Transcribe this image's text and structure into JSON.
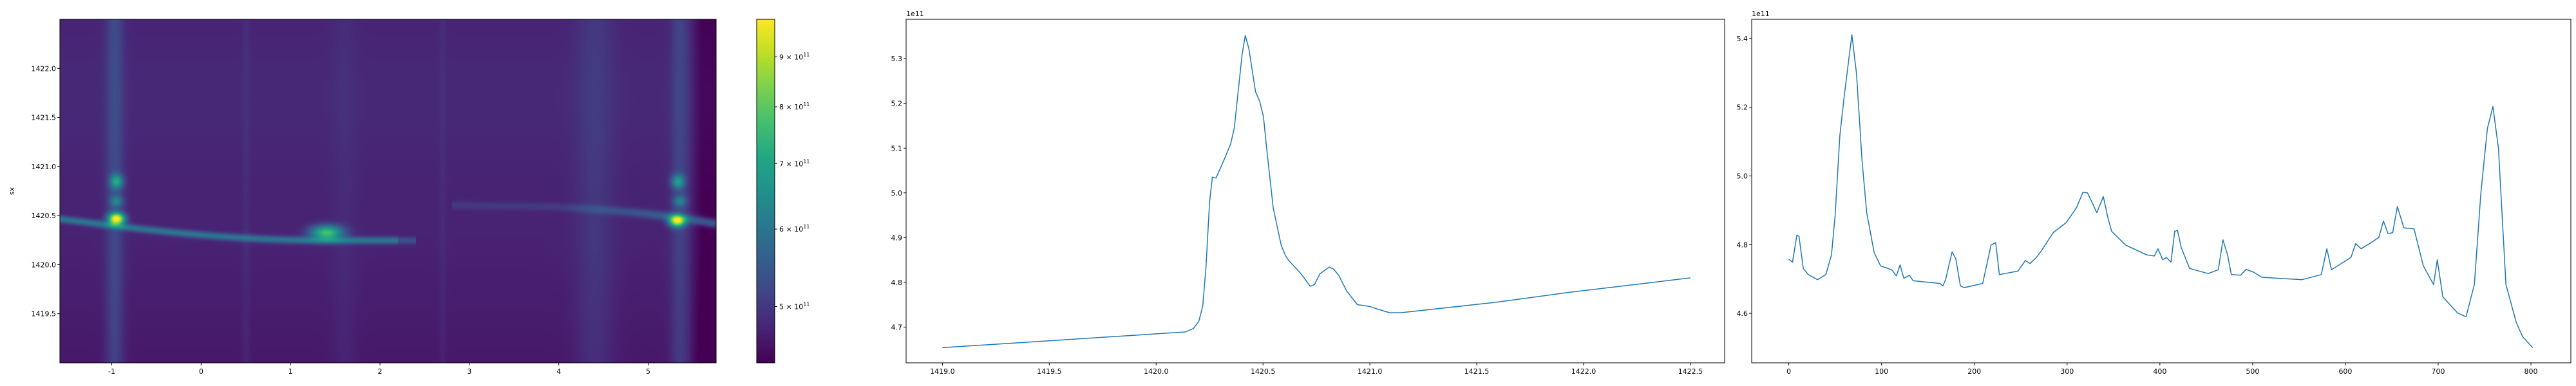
{
  "chart_data": [
    {
      "type": "heatmap",
      "ylabel": "sx",
      "xlabel": "",
      "xlim": [
        -1.58,
        5.76
      ],
      "ylim": [
        1419.0,
        1422.5
      ],
      "xticks": [
        "-1",
        "0",
        "1",
        "2",
        "3",
        "4",
        "5"
      ],
      "yticks": [
        "1419.5",
        "1420.0",
        "1420.5",
        "1421.0",
        "1421.5",
        "1422.0"
      ],
      "colormap": "viridis",
      "colorbar": {
        "scale": "log",
        "range": [
          438000000000.0,
          983000000000.0
        ],
        "ticks": [
          {
            "value": 500000000000.0,
            "mantissa": "5",
            "label": "5 × 10",
            "exp": "11"
          },
          {
            "value": 600000000000.0,
            "mantissa": "6",
            "label": "6 × 10",
            "exp": "11"
          },
          {
            "value": 700000000000.0,
            "mantissa": "7",
            "label": "7 × 10",
            "exp": "11"
          },
          {
            "value": 800000000000.0,
            "mantissa": "8",
            "label": "8 × 10",
            "exp": "11"
          },
          {
            "value": 900000000000.0,
            "mantissa": "9",
            "label": "9 × 10",
            "exp": "11"
          }
        ]
      }
    },
    {
      "type": "line",
      "xlim": [
        1418.83,
        1422.66
      ],
      "ylim": [
        4.62,
        5.388
      ],
      "offset_text": "1e11",
      "xticks": [
        "1419.0",
        "1419.5",
        "1420.0",
        "1420.5",
        "1421.0",
        "1421.5",
        "1422.0",
        "1422.5"
      ],
      "yticks": [
        "4.7",
        "4.8",
        "4.9",
        "5.0",
        "5.1",
        "5.2",
        "5.3"
      ],
      "color": "#1f77b4",
      "x": [
        1419.0,
        1420.137,
        1420.175,
        1420.2,
        1420.218,
        1420.233,
        1420.25,
        1420.263,
        1420.28,
        1420.318,
        1420.349,
        1420.366,
        1420.402,
        1420.417,
        1420.434,
        1420.465,
        1420.485,
        1420.502,
        1420.52,
        1420.548,
        1420.585,
        1420.605,
        1420.62,
        1420.678,
        1420.721,
        1420.741,
        1420.766,
        1420.809,
        1420.829,
        1420.854,
        1420.892,
        1420.942,
        1421.0,
        1421.037,
        1421.093,
        1421.144,
        1421.584,
        1421.924,
        1422.5
      ],
      "y": [
        4.654,
        4.689,
        4.697,
        4.713,
        4.747,
        4.833,
        4.979,
        5.035,
        5.033,
        5.074,
        5.11,
        5.146,
        5.309,
        5.352,
        5.322,
        5.226,
        5.204,
        5.17,
        5.087,
        4.966,
        4.883,
        4.86,
        4.849,
        4.819,
        4.791,
        4.795,
        4.819,
        4.834,
        4.83,
        4.816,
        4.78,
        4.75,
        4.746,
        4.74,
        4.732,
        4.732,
        4.755,
        4.777,
        4.81
      ]
    },
    {
      "type": "line",
      "xlim": [
        -40,
        843
      ],
      "ylim": [
        4.456,
        5.456
      ],
      "offset_text": "1e11",
      "xticks": [
        "0",
        "100",
        "200",
        "300",
        "400",
        "500",
        "600",
        "700",
        "800"
      ],
      "yticks": [
        "4.6",
        "4.8",
        "5.0",
        "5.2",
        "5.4"
      ],
      "color": "#1f77b4",
      "x": [
        0,
        4,
        8.7,
        11,
        15.6,
        21,
        31,
        40,
        46,
        50,
        55,
        60,
        68,
        73,
        79,
        84,
        92,
        99,
        111,
        116,
        120,
        124,
        130,
        134,
        163,
        166,
        169,
        176,
        180,
        185,
        189,
        209,
        218,
        223,
        227,
        247,
        255,
        260,
        267,
        273,
        285,
        299,
        310,
        317,
        322,
        332,
        339,
        344,
        348,
        363,
        386,
        394,
        398,
        403,
        407,
        412,
        416,
        419,
        423,
        432,
        452,
        463,
        468,
        473,
        477,
        487,
        493,
        501,
        510,
        553,
        574,
        580,
        585,
        606,
        611,
        617,
        626,
        636,
        641,
        646,
        651,
        656,
        663,
        674,
        684,
        695,
        699,
        705,
        721,
        730,
        739,
        746,
        753,
        759,
        765,
        773,
        784,
        791,
        802
      ],
      "y": [
        4.758,
        4.749,
        4.828,
        4.824,
        4.731,
        4.713,
        4.698,
        4.713,
        4.77,
        4.886,
        5.117,
        5.239,
        5.411,
        5.297,
        5.044,
        4.893,
        4.777,
        4.738,
        4.727,
        4.709,
        4.741,
        4.702,
        4.711,
        4.695,
        4.687,
        4.68,
        4.698,
        4.779,
        4.759,
        4.68,
        4.675,
        4.687,
        4.799,
        4.806,
        4.713,
        4.723,
        4.754,
        4.745,
        4.763,
        4.785,
        4.835,
        4.864,
        4.907,
        4.952,
        4.951,
        4.893,
        4.94,
        4.878,
        4.839,
        4.799,
        4.77,
        4.767,
        4.788,
        4.756,
        4.763,
        4.749,
        4.839,
        4.842,
        4.792,
        4.731,
        4.716,
        4.727,
        4.814,
        4.77,
        4.713,
        4.711,
        4.728,
        4.72,
        4.705,
        4.698,
        4.713,
        4.788,
        4.727,
        4.763,
        4.803,
        4.788,
        4.803,
        4.821,
        4.869,
        4.832,
        4.835,
        4.911,
        4.849,
        4.846,
        4.738,
        4.684,
        4.756,
        4.648,
        4.601,
        4.59,
        4.684,
        4.951,
        5.138,
        5.202,
        5.08,
        4.684,
        4.575,
        4.532,
        4.5
      ]
    }
  ]
}
